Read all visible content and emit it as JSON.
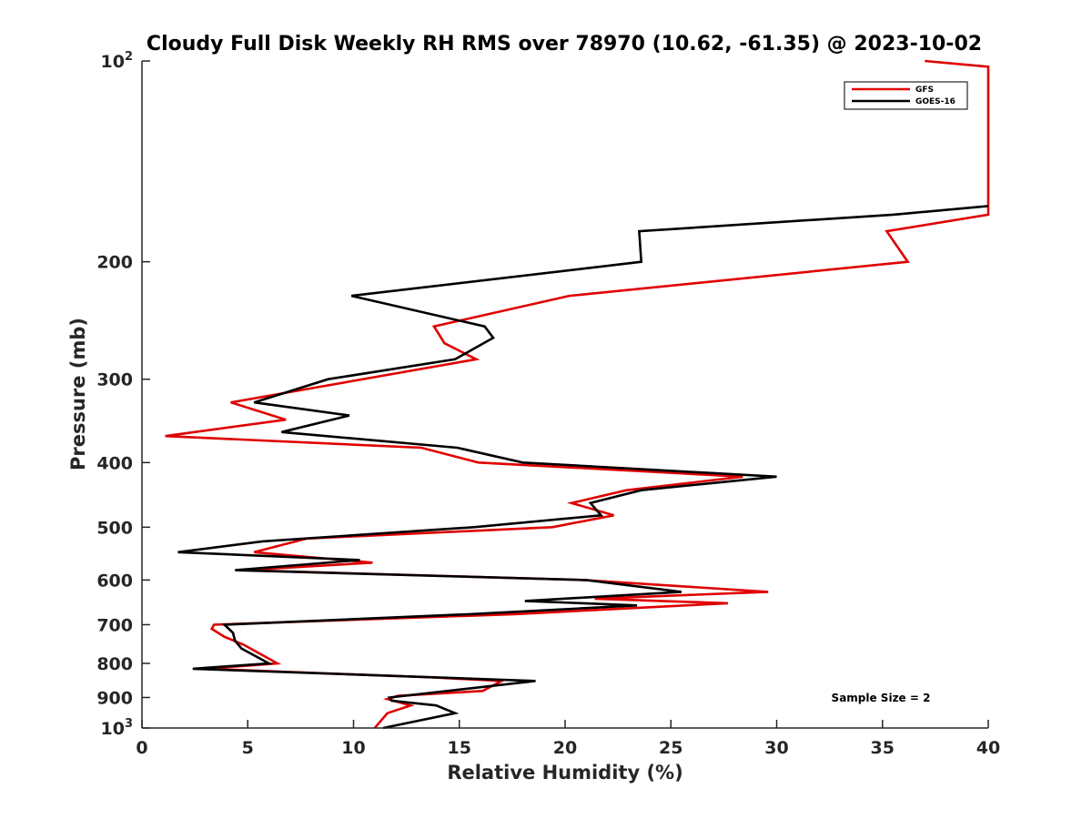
{
  "chart_data": {
    "type": "line",
    "title": "Cloudy Full Disk Weekly RH RMS over 78970 (10.62, -61.35) @ 2023-10-02",
    "xlabel": "Relative Humidity (%)",
    "ylabel": "Pressure (mb)",
    "xlim": [
      0,
      40
    ],
    "ylim": [
      100,
      1000
    ],
    "yscale": "log",
    "y_reversed": true,
    "grid": false,
    "legend_position": "top-right",
    "x_ticks": [
      "0",
      "5",
      "10",
      "15",
      "20",
      "25",
      "30",
      "35",
      "40"
    ],
    "y_ticks": [
      {
        "value": 100,
        "base": "10",
        "exp": "2"
      },
      {
        "value": 200,
        "label": "200"
      },
      {
        "value": 300,
        "label": "300"
      },
      {
        "value": 400,
        "label": "400"
      },
      {
        "value": 500,
        "label": "500"
      },
      {
        "value": 600,
        "label": "600"
      },
      {
        "value": 700,
        "label": "700"
      },
      {
        "value": 800,
        "label": "800"
      },
      {
        "value": 900,
        "label": "900"
      },
      {
        "value": 1000,
        "base": "10",
        "exp": "3"
      }
    ],
    "annotation": "Sample Size = 2",
    "series": [
      {
        "name": "GFS",
        "color": "#e00000",
        "points": [
          [
            37,
            100
          ],
          [
            40,
            102
          ],
          [
            40,
            170
          ],
          [
            35.2,
            180
          ],
          [
            36.2,
            200
          ],
          [
            20.2,
            225
          ],
          [
            13.8,
            250
          ],
          [
            14.3,
            265
          ],
          [
            15.8,
            280
          ],
          [
            4.2,
            325
          ],
          [
            6.8,
            345
          ],
          [
            1.1,
            365
          ],
          [
            13.2,
            380
          ],
          [
            15.9,
            400
          ],
          [
            28.4,
            420
          ],
          [
            22.9,
            440
          ],
          [
            20.3,
            460
          ],
          [
            22.3,
            480
          ],
          [
            19.4,
            500
          ],
          [
            7.8,
            520
          ],
          [
            5.3,
            545
          ],
          [
            10.9,
            565
          ],
          [
            4.8,
            580
          ],
          [
            20.9,
            600
          ],
          [
            29.6,
            625
          ],
          [
            21.4,
            640
          ],
          [
            27.7,
            650
          ],
          [
            17.6,
            675
          ],
          [
            3.4,
            700
          ],
          [
            3.3,
            710
          ],
          [
            3.9,
            730
          ],
          [
            4.8,
            750
          ],
          [
            6.4,
            800
          ],
          [
            3.0,
            815
          ],
          [
            13.8,
            840
          ],
          [
            17.0,
            850
          ],
          [
            16.1,
            880
          ],
          [
            12.1,
            895
          ],
          [
            11.6,
            905
          ],
          [
            12.7,
            925
          ],
          [
            11.6,
            950
          ],
          [
            11.0,
            1000
          ]
        ]
      },
      {
        "name": "GOES-16",
        "color": "#000000",
        "points": [
          [
            40,
            165
          ],
          [
            35.5,
            170
          ],
          [
            23.5,
            180
          ],
          [
            23.6,
            200
          ],
          [
            9.9,
            225
          ],
          [
            16.2,
            250
          ],
          [
            16.6,
            260
          ],
          [
            14.8,
            280
          ],
          [
            8.8,
            300
          ],
          [
            5.3,
            325
          ],
          [
            9.8,
            340
          ],
          [
            6.6,
            360
          ],
          [
            14.9,
            380
          ],
          [
            18.0,
            400
          ],
          [
            30.0,
            420
          ],
          [
            23.6,
            440
          ],
          [
            21.2,
            460
          ],
          [
            21.7,
            480
          ],
          [
            15.7,
            500
          ],
          [
            5.7,
            525
          ],
          [
            1.7,
            545
          ],
          [
            10.3,
            560
          ],
          [
            4.4,
            580
          ],
          [
            21.0,
            600
          ],
          [
            25.5,
            625
          ],
          [
            18.1,
            645
          ],
          [
            23.4,
            655
          ],
          [
            15.5,
            675
          ],
          [
            3.9,
            700
          ],
          [
            4.3,
            720
          ],
          [
            4.4,
            740
          ],
          [
            4.7,
            760
          ],
          [
            6.0,
            800
          ],
          [
            2.4,
            815
          ],
          [
            18.6,
            850
          ],
          [
            11.7,
            900
          ],
          [
            11.8,
            910
          ],
          [
            13.9,
            925
          ],
          [
            14.8,
            950
          ],
          [
            11.4,
            1000
          ]
        ]
      }
    ]
  }
}
